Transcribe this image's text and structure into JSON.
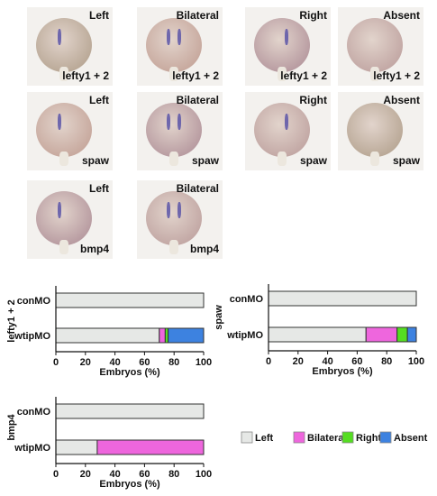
{
  "panels": [
    {
      "row": 0,
      "col": 0,
      "label": "Left",
      "gene": "lefty1 + 2"
    },
    {
      "row": 0,
      "col": 1,
      "label": "Bilateral",
      "gene": "lefty1 + 2"
    },
    {
      "row": 0,
      "col": 2,
      "label": "Right",
      "gene": "lefty1 + 2"
    },
    {
      "row": 0,
      "col": 3,
      "label": "Absent",
      "gene": "lefty1 + 2"
    },
    {
      "row": 1,
      "col": 0,
      "label": "Left",
      "gene": "spaw"
    },
    {
      "row": 1,
      "col": 1,
      "label": "Bilateral",
      "gene": "spaw"
    },
    {
      "row": 1,
      "col": 2,
      "label": "Right",
      "gene": "spaw"
    },
    {
      "row": 1,
      "col": 3,
      "label": "Absent",
      "gene": "spaw"
    },
    {
      "row": 2,
      "col": 0,
      "label": "Left",
      "gene": "bmp4"
    },
    {
      "row": 2,
      "col": 1,
      "label": "Bilateral",
      "gene": "bmp4"
    }
  ],
  "legend": [
    {
      "name": "Left",
      "color": "#e6e8e6"
    },
    {
      "name": "Bilateral",
      "color": "#ee66dd"
    },
    {
      "name": "Right",
      "color": "#55dd22"
    },
    {
      "name": "Absent",
      "color": "#3d82e0"
    }
  ],
  "chart_data": [
    {
      "type": "bar",
      "orientation": "horizontal-stacked",
      "ylabel": "lefty1 + 2",
      "xlabel": "Embryos (%)",
      "xlim": [
        0,
        100
      ],
      "ticks": [
        0,
        20,
        40,
        60,
        80,
        100
      ],
      "categories": [
        "conMO",
        "wtipMO"
      ],
      "series": [
        {
          "name": "Left",
          "values": [
            100,
            70
          ]
        },
        {
          "name": "Bilateral",
          "values": [
            0,
            4
          ]
        },
        {
          "name": "Right",
          "values": [
            0,
            2
          ]
        },
        {
          "name": "Absent",
          "values": [
            0,
            24
          ]
        }
      ]
    },
    {
      "type": "bar",
      "orientation": "horizontal-stacked",
      "ylabel": "spaw",
      "xlabel": "Embryos (%)",
      "xlim": [
        0,
        100
      ],
      "ticks": [
        0,
        20,
        40,
        60,
        80,
        100
      ],
      "categories": [
        "conMO",
        "wtipMO"
      ],
      "series": [
        {
          "name": "Left",
          "values": [
            100,
            66
          ]
        },
        {
          "name": "Bilateral",
          "values": [
            0,
            21
          ]
        },
        {
          "name": "Right",
          "values": [
            0,
            7
          ]
        },
        {
          "name": "Absent",
          "values": [
            0,
            6
          ]
        }
      ]
    },
    {
      "type": "bar",
      "orientation": "horizontal-stacked",
      "ylabel": "bmp4",
      "xlabel": "Embryos (%)",
      "xlim": [
        0,
        100
      ],
      "ticks": [
        0,
        20,
        40,
        60,
        80,
        100
      ],
      "categories": [
        "conMO",
        "wtipMO"
      ],
      "series": [
        {
          "name": "Left",
          "values": [
            100,
            28
          ]
        },
        {
          "name": "Bilateral",
          "values": [
            0,
            72
          ]
        },
        {
          "name": "Right",
          "values": [
            0,
            0
          ]
        },
        {
          "name": "Absent",
          "values": [
            0,
            0
          ]
        }
      ]
    }
  ]
}
